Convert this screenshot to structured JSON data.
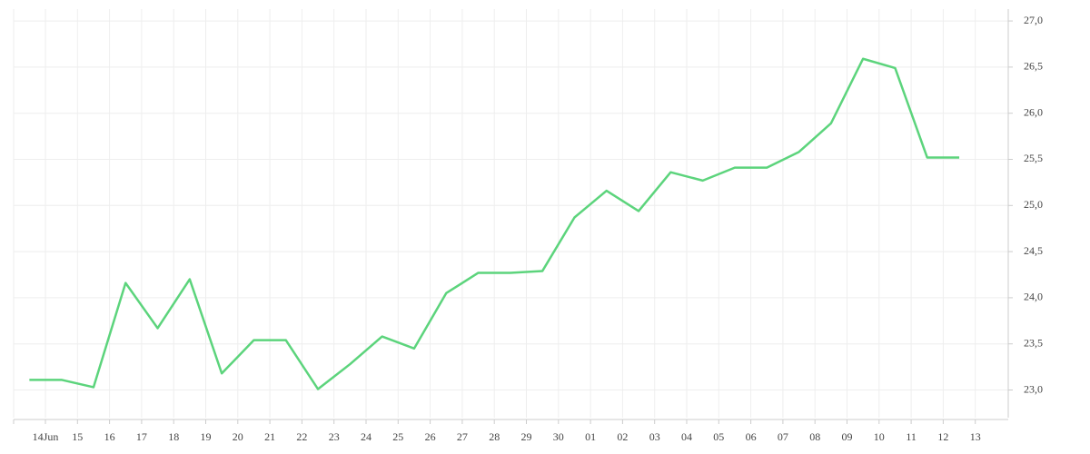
{
  "chart_data": {
    "type": "line",
    "categories": [
      "14Jun",
      "15",
      "16",
      "17",
      "18",
      "19",
      "20",
      "21",
      "22",
      "23",
      "24",
      "25",
      "26",
      "27",
      "28",
      "29",
      "30",
      "01",
      "02",
      "03",
      "04",
      "05",
      "06",
      "07",
      "08",
      "09",
      "10",
      "11",
      "12",
      "13"
    ],
    "series": [
      {
        "color": "#5cd47c",
        "values": [
          23.11,
          23.11,
          23.03,
          24.16,
          23.67,
          24.2,
          23.18,
          23.54,
          23.54,
          23.01,
          23.28,
          23.58,
          23.45,
          24.05,
          24.27,
          24.27,
          24.29,
          24.87,
          25.16,
          24.94,
          25.36,
          25.27,
          25.41,
          25.41,
          25.58,
          25.89,
          26.59,
          26.49,
          25.52,
          25.52
        ]
      }
    ],
    "ylim": [
      22.7,
      27.05
    ],
    "yticks": [
      {
        "value": 23,
        "label": "23,0"
      },
      {
        "value": 23.5,
        "label": "23,5"
      },
      {
        "value": 24,
        "label": "24,0"
      },
      {
        "value": 24.5,
        "label": "24,5"
      },
      {
        "value": 25,
        "label": "25,0"
      },
      {
        "value": 25.5,
        "label": "25,5"
      },
      {
        "value": 26,
        "label": "26,0"
      },
      {
        "value": 26.5,
        "label": "26,5"
      },
      {
        "value": 27,
        "label": "27,0"
      }
    ],
    "grid": true,
    "y_axis_side": "right"
  }
}
